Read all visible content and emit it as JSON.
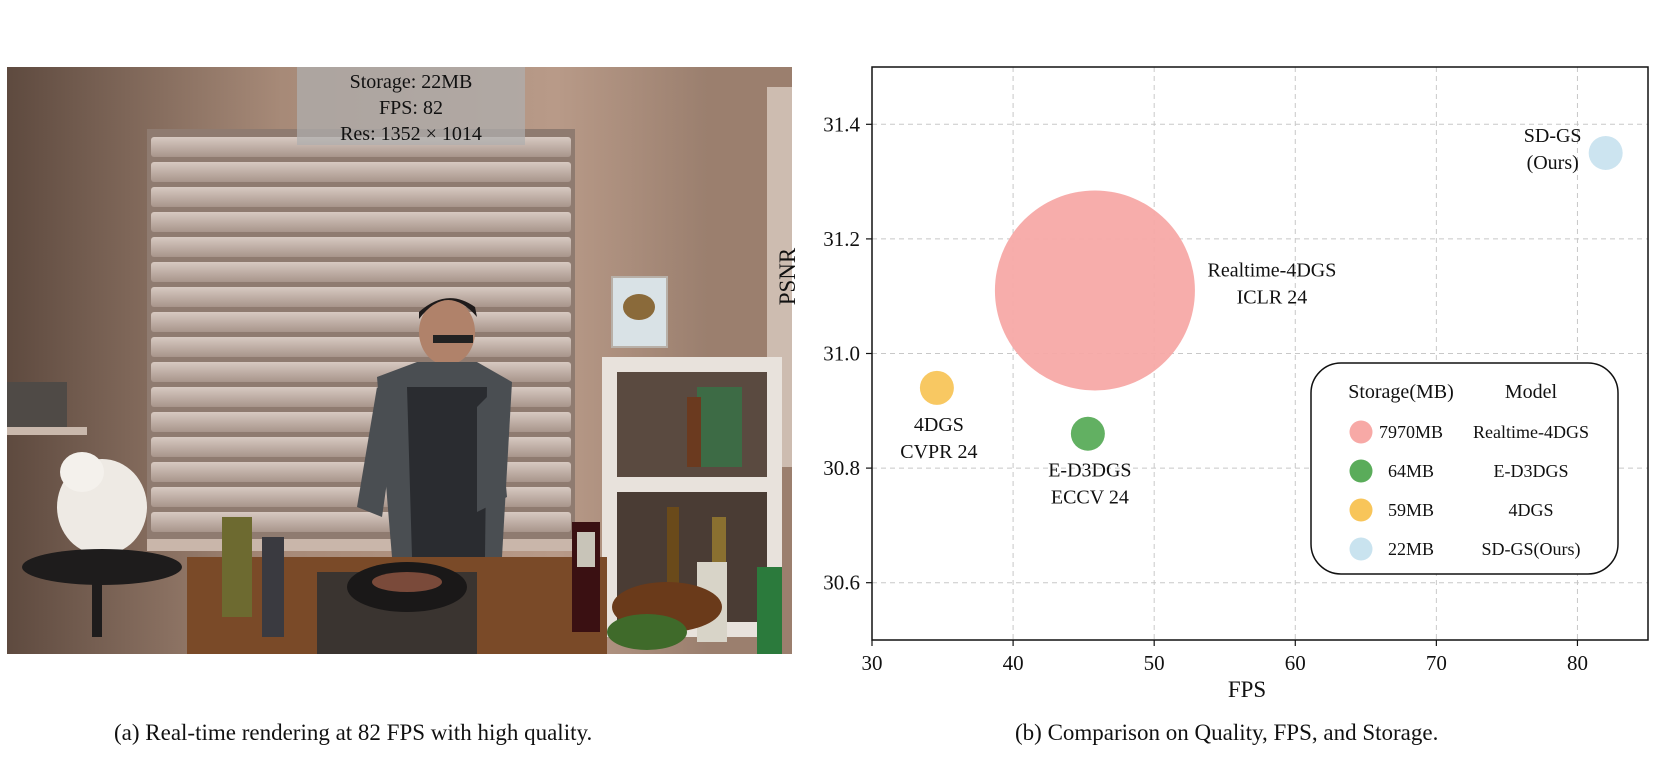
{
  "left_panel": {
    "overlay": {
      "storage": "Storage: 22MB",
      "fps": "FPS: 82",
      "res": "Res: 1352 × 1014"
    },
    "caption": "(a) Real-time rendering at 82 FPS with high quality."
  },
  "right_panel": {
    "caption": "(b) Comparison on Quality, FPS, and Storage."
  },
  "chart_data": {
    "type": "scatter",
    "xlabel": "FPS",
    "ylabel": "PSNR",
    "xlim": [
      30,
      85
    ],
    "ylim": [
      30.5,
      31.5
    ],
    "xticks": [
      "30",
      "40",
      "50",
      "60",
      "70",
      "80"
    ],
    "yticks": [
      "30.6",
      "30.8",
      "31.0",
      "31.2",
      "31.4"
    ],
    "grid": true,
    "series": [
      {
        "model": "Realtime-4DGS",
        "venue": "ICLR 24",
        "fps": 45.8,
        "psnr": 31.11,
        "storage_mb": 7970,
        "storage_label": "7970MB",
        "color": "#f7a9a6"
      },
      {
        "model": "E-D3DGS",
        "venue": "ECCV 24",
        "fps": 45.3,
        "psnr": 30.86,
        "storage_mb": 64,
        "storage_label": "64MB",
        "color": "#5aac5a"
      },
      {
        "model": "4DGS",
        "venue": "CVPR 24",
        "fps": 34.6,
        "psnr": 30.94,
        "storage_mb": 59,
        "storage_label": "59MB",
        "color": "#f8c55a"
      },
      {
        "model": "SD-GS",
        "venue": "(Ours)",
        "fps": 82.0,
        "psnr": 31.35,
        "storage_mb": 22,
        "storage_label": "22MB",
        "color": "#c9e3ef"
      }
    ],
    "legend": {
      "placement": "lower-right",
      "header_storage": "Storage(MB)",
      "header_model": "Model",
      "rows": [
        {
          "storage": "7970MB",
          "model": "Realtime-4DGS",
          "color": "#f7a9a6"
        },
        {
          "storage": "64MB",
          "model": "E-D3DGS",
          "color": "#5aac5a"
        },
        {
          "storage": "59MB",
          "model": "4DGS",
          "color": "#f8c55a"
        },
        {
          "storage": "22MB",
          "model": "SD-GS(Ours)",
          "color": "#c9e3ef"
        }
      ]
    }
  }
}
